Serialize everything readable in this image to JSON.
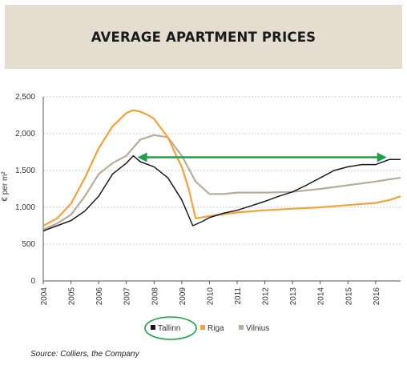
{
  "title": "AVERAGE APARTMENT PRICES",
  "source": "Source: Colliers, the Company",
  "chart_data": {
    "type": "line",
    "ylabel": "€ per m²",
    "ylim": [
      0,
      2500
    ],
    "xlim": [
      2004,
      2016.9
    ],
    "yticks": [
      0,
      500,
      1000,
      1500,
      2000,
      2500
    ],
    "ytick_labels": [
      "0",
      "500",
      "1,000",
      "1,500",
      "2,000",
      "2,500"
    ],
    "xticks": [
      2004,
      2005,
      2006,
      2007,
      2008,
      2009,
      2010,
      2011,
      2012,
      2013,
      2014,
      2015,
      2016
    ],
    "grid": "horizontal dotted",
    "legend_position": "bottom",
    "series": [
      {
        "name": "Tallinn",
        "color": "#1a1a1a",
        "x": [
          2004.0,
          2004.5,
          2005.0,
          2005.5,
          2006.0,
          2006.5,
          2007.0,
          2007.25,
          2007.5,
          2008.0,
          2008.5,
          2009.0,
          2009.4,
          2009.75,
          2010.0,
          2010.5,
          2011.0,
          2011.5,
          2012.0,
          2012.5,
          2013.0,
          2013.5,
          2014.0,
          2014.5,
          2015.0,
          2015.5,
          2016.0,
          2016.5,
          2016.9
        ],
        "values": [
          680,
          750,
          820,
          950,
          1150,
          1450,
          1600,
          1700,
          1620,
          1550,
          1400,
          1100,
          750,
          810,
          860,
          920,
          960,
          1020,
          1080,
          1150,
          1210,
          1300,
          1400,
          1500,
          1550,
          1580,
          1580,
          1650,
          1650
        ]
      },
      {
        "name": "Riga",
        "color": "#f4a23a",
        "x": [
          2004.0,
          2004.5,
          2005.0,
          2005.5,
          2006.0,
          2006.5,
          2007.0,
          2007.25,
          2007.5,
          2007.8,
          2008.0,
          2008.5,
          2008.8,
          2009.0,
          2009.25,
          2009.5,
          2010.0,
          2011.0,
          2012.0,
          2013.0,
          2014.0,
          2015.0,
          2016.0,
          2016.5,
          2016.9
        ],
        "values": [
          750,
          850,
          1050,
          1400,
          1800,
          2100,
          2280,
          2320,
          2300,
          2250,
          2200,
          1950,
          1700,
          1550,
          1250,
          850,
          880,
          930,
          960,
          980,
          1000,
          1030,
          1060,
          1100,
          1150
        ]
      },
      {
        "name": "Vilnius",
        "color": "#b8ad9c",
        "x": [
          2004.0,
          2004.5,
          2005.0,
          2005.5,
          2006.0,
          2006.5,
          2007.0,
          2007.5,
          2008.0,
          2008.5,
          2009.0,
          2009.5,
          2010.0,
          2010.5,
          2011.0,
          2012.0,
          2013.0,
          2014.0,
          2015.0,
          2016.0,
          2016.5,
          2016.9
        ],
        "values": [
          700,
          780,
          900,
          1150,
          1450,
          1600,
          1700,
          1920,
          1980,
          1950,
          1700,
          1350,
          1180,
          1180,
          1200,
          1200,
          1210,
          1250,
          1300,
          1350,
          1380,
          1400
        ]
      }
    ]
  },
  "annotations": {
    "arrow_color": "#1aa34a",
    "highlight_color": "#1aa34a"
  }
}
